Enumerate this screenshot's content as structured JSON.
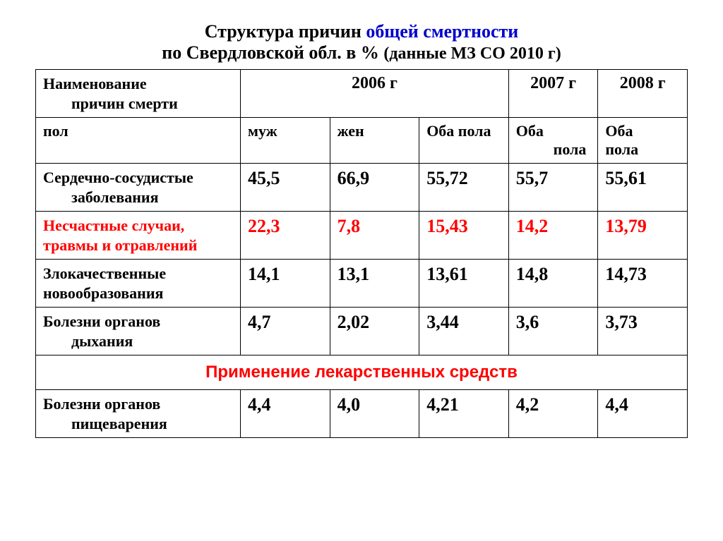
{
  "title": {
    "part1": "Структура причин ",
    "part2_blue": "общей смертности",
    "line2_main": "по Свердловской обл. в % ",
    "line2_note": "(данные МЗ СО 2010 г)"
  },
  "headers": {
    "row1": {
      "name_line1": "Наименование",
      "name_line2": "причин смерти",
      "year2006": "2006 г",
      "year2007": "2007 г",
      "year2008": "2008 г"
    },
    "row2": {
      "gender_label": "пол",
      "male": "муж",
      "female": "жен",
      "both1": "Оба пола",
      "both2_line1": "Оба",
      "both2_line2": "пола",
      "both3_line1": "Оба",
      "both3_line2": "пола"
    }
  },
  "rows": [
    {
      "name_line1": "Сердечно-сосудистые",
      "name_line2": "заболевания",
      "red": false,
      "values": [
        "45,5",
        "66,9",
        "55,72",
        "55,7",
        "55,61"
      ]
    },
    {
      "name_line1": "Несчастные случаи,",
      "name_line2": "травмы и отравлений",
      "red": true,
      "no_indent": true,
      "values": [
        "22,3",
        "7,8",
        "15,43",
        "14,2",
        "13,79"
      ]
    },
    {
      "name_line1": "Злокачественные",
      "name_line2": "новообразования",
      "red": false,
      "no_indent": true,
      "values": [
        "14,1",
        "13,1",
        "13,61",
        "14,8",
        "14,73"
      ]
    },
    {
      "name_line1": "Болезни органов",
      "name_line2": "дыхания",
      "red": false,
      "values": [
        "4,7",
        "2,02",
        "3,44",
        "3,6",
        "3,73"
      ]
    }
  ],
  "section_row": "Применение лекарственных средств",
  "rows_after": [
    {
      "name_line1": "Болезни органов",
      "name_line2": "пищеварения",
      "red": false,
      "values": [
        "4,4",
        "4,0",
        "4,21",
        "4,2",
        "4,4"
      ]
    }
  ],
  "style": {
    "border_color": "#000000",
    "background_color": "#ffffff",
    "title_blue": "#0000cc",
    "red_color": "#ff0000",
    "text_color": "#000000",
    "title_fontsize": 26,
    "cell_fontsize": 24,
    "data_fontsize": 26
  }
}
